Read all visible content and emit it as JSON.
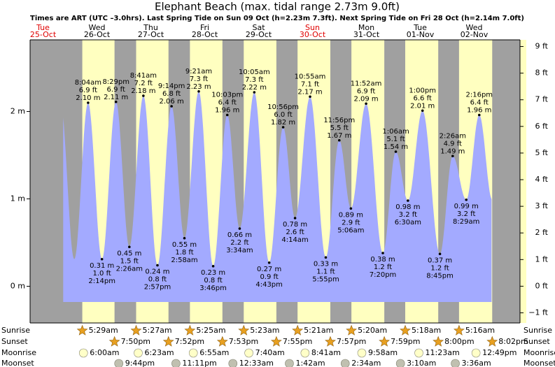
{
  "chart_data": {
    "type": "tide",
    "title": "Elephant Beach (max. tidal range 2.73m 9.0ft)",
    "subtitle": "Times are ART (UTC –3.0hrs). Last Spring Tide on Sun 09 Oct (h=2.23m 7.3ft). Next Spring Tide on Fri 28 Oct (h=2.14m 7.0ft)",
    "ylim": [
      -0.42,
      2.82
    ],
    "yticks": [
      {
        "value": 0,
        "label": "0 m"
      },
      {
        "value": 1,
        "label": "1 m"
      },
      {
        "value": 2,
        "label": "2 m"
      }
    ],
    "y2lim": [
      -1.38,
      9.25
    ],
    "y2ticks": [
      {
        "value": -1,
        "label": "−1 ft"
      },
      {
        "value": 0,
        "label": "0 ft"
      },
      {
        "value": 1,
        "label": "1 ft"
      },
      {
        "value": 2,
        "label": "2 ft"
      },
      {
        "value": 3,
        "label": "3 ft"
      },
      {
        "value": 4,
        "label": "4 ft"
      },
      {
        "value": 5,
        "label": "5 ft"
      },
      {
        "value": 6,
        "label": "6 ft"
      },
      {
        "value": 7,
        "label": "7 ft"
      },
      {
        "value": 8,
        "label": "8 ft"
      },
      {
        "value": 9,
        "label": "9 ft"
      }
    ],
    "night_color": "#a0a0a0",
    "day_color": "#ffffc0",
    "water_color": "#a3aaff",
    "rows": [
      "Sunrise",
      "Sunset",
      "Moonrise",
      "Moonset"
    ],
    "days": [
      {
        "dow": "Tue",
        "date": "25-Oct",
        "color": "#e00000"
      },
      {
        "dow": "Wed",
        "date": "26-Oct",
        "sunrise": "5:29am",
        "sunset": "7:50pm",
        "moonrise": "6:00am",
        "moonset": "9:44pm",
        "tides": [
          {
            "time": "8:04am",
            "ft": "6.9 ft",
            "m": "2.10 m"
          },
          {
            "time": "2:14pm",
            "ft": "1.0 ft",
            "m": "0.31 m"
          },
          {
            "time": "8:29pm",
            "ft": "6.9 ft",
            "m": "2.11 m"
          }
        ]
      },
      {
        "dow": "Thu",
        "date": "27-Oct",
        "sunrise": "5:27am",
        "sunset": "7:52pm",
        "moonrise": "6:23am",
        "moonset": "11:11pm",
        "tides": [
          {
            "time": "2:26am",
            "ft": "1.5 ft",
            "m": "0.45 m"
          },
          {
            "time": "8:41am",
            "ft": "7.2 ft",
            "m": "2.18 m"
          },
          {
            "time": "2:57pm",
            "ft": "0.8 ft",
            "m": "0.24 m"
          },
          {
            "time": "9:14pm",
            "ft": "6.8 ft",
            "m": "2.06 m"
          }
        ]
      },
      {
        "dow": "Fri",
        "date": "28-Oct",
        "sunrise": "5:25am",
        "sunset": "7:53pm",
        "moonrise": "6:55am",
        "tides": [
          {
            "time": "2:58am",
            "ft": "1.8 ft",
            "m": "0.55 m"
          },
          {
            "time": "9:21am",
            "ft": "7.3 ft",
            "m": "2.23 m"
          },
          {
            "time": "3:46pm",
            "ft": "0.8 ft",
            "m": "0.23 m"
          },
          {
            "time": "10:03pm",
            "ft": "6.4 ft",
            "m": "1.96 m"
          }
        ]
      },
      {
        "dow": "Sat",
        "date": "29-Oct",
        "sunrise": "5:23am",
        "sunset": "7:55pm",
        "moonrise": "7:40am",
        "moonset": "12:33am",
        "tides": [
          {
            "time": "3:34am",
            "ft": "2.2 ft",
            "m": "0.66 m"
          },
          {
            "time": "10:05am",
            "ft": "7.3 ft",
            "m": "2.22 m"
          },
          {
            "time": "4:43pm",
            "ft": "0.9 ft",
            "m": "0.27 m"
          },
          {
            "time": "10:56pm",
            "ft": "6.0 ft",
            "m": "1.82 m"
          }
        ]
      },
      {
        "dow": "Sun",
        "date": "30-Oct",
        "color": "#e00000",
        "sunrise": "5:21am",
        "sunset": "7:57pm",
        "moonrise": "8:41am",
        "moonset": "1:42am",
        "tides": [
          {
            "time": "4:14am",
            "ft": "2.6 ft",
            "m": "0.78 m"
          },
          {
            "time": "10:55am",
            "ft": "7.1 ft",
            "m": "2.17 m"
          },
          {
            "time": "5:55pm",
            "ft": "1.1 ft",
            "m": "0.33 m"
          },
          {
            "time": "11:56pm",
            "ft": "5.5 ft",
            "m": "1.67 m"
          }
        ]
      },
      {
        "dow": "Mon",
        "date": "31-Oct",
        "sunrise": "5:20am",
        "sunset": "7:59pm",
        "moonrise": "9:58am",
        "moonset": "2:34am",
        "tides": [
          {
            "time": "5:06am",
            "ft": "2.9 ft",
            "m": "0.89 m"
          },
          {
            "time": "11:52am",
            "ft": "6.9 ft",
            "m": "2.09 m"
          },
          {
            "time": "7:20pm",
            "ft": "1.2 ft",
            "m": "0.38 m"
          }
        ]
      },
      {
        "dow": "Tue",
        "date": "01-Nov",
        "sunrise": "5:18am",
        "sunset": "8:00pm",
        "moonrise": "11:23am",
        "moonset": "3:10am",
        "tides": [
          {
            "time": "1:06am",
            "ft": "5.1 ft",
            "m": "1.54 m"
          },
          {
            "time": "6:30am",
            "ft": "3.2 ft",
            "m": "0.98 m"
          },
          {
            "time": "1:00pm",
            "ft": "6.6 ft",
            "m": "2.01 m"
          },
          {
            "time": "8:45pm",
            "ft": "1.2 ft",
            "m": "0.37 m"
          }
        ]
      },
      {
        "dow": "Wed",
        "date": "02-Nov",
        "sunrise": "5:16am",
        "sunset": "8:02pm",
        "moonrise": "12:49pm",
        "moonset": "3:36am",
        "tides": [
          {
            "time": "2:26am",
            "ft": "4.9 ft",
            "m": "1.49 m"
          },
          {
            "time": "8:29am",
            "ft": "3.2 ft",
            "m": "0.99 m"
          },
          {
            "time": "2:16pm",
            "ft": "6.4 ft",
            "m": "1.96 m"
          }
        ]
      }
    ]
  }
}
